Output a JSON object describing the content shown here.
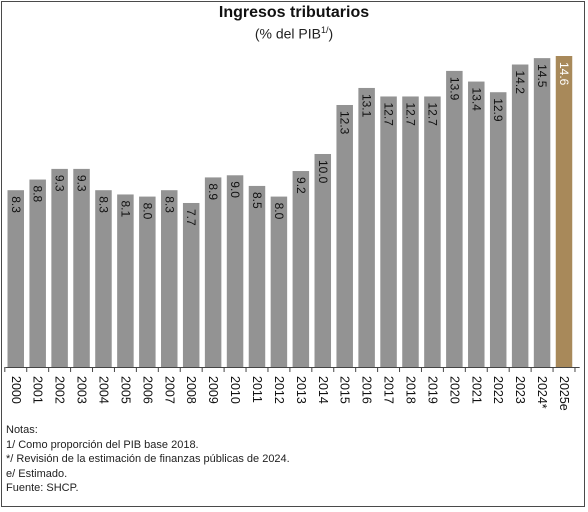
{
  "chart_data": {
    "type": "bar",
    "title": "Ingresos tributarios",
    "subtitle": "(% del PIB",
    "subtitle_sup": "1/",
    "subtitle_close": ")",
    "categories": [
      "2000",
      "2001",
      "2002",
      "2003",
      "2004",
      "2005",
      "2006",
      "2007",
      "2008",
      "2009",
      "2010",
      "2011",
      "2012",
      "2013",
      "2014",
      "2015",
      "2016",
      "2017",
      "2018",
      "2019",
      "2020",
      "2021",
      "2022",
      "2023",
      "2024*",
      "2025e"
    ],
    "values": [
      8.3,
      8.8,
      9.3,
      9.3,
      8.3,
      8.1,
      8.0,
      8.3,
      7.7,
      8.9,
      9.0,
      8.5,
      8.0,
      9.2,
      10.0,
      12.3,
      13.1,
      12.7,
      12.7,
      12.7,
      13.9,
      13.4,
      12.9,
      14.2,
      14.5,
      14.6
    ],
    "labels": [
      "8.3",
      "8.8",
      "9.3",
      "9.3",
      "8.3",
      "8.1",
      "8.0",
      "8.3",
      "7.7",
      "8.9",
      "9.0",
      "8.5",
      "8.0",
      "9.2",
      "10.0",
      "12.3",
      "13.1",
      "12.7",
      "12.7",
      "12.7",
      "13.9",
      "13.4",
      "12.9",
      "14.2",
      "14.5",
      "14.6"
    ],
    "highlight_category": "2025e",
    "colors": {
      "bar": "#939393",
      "highlight": "#a8895a",
      "label": "#111111",
      "highlight_label": "#ffffff",
      "axis": "#444444"
    },
    "ylim": [
      0,
      14.6
    ],
    "grid": false,
    "legend": "none"
  },
  "notes": [
    "Notas:",
    "1/ Como proporción del PIB base 2018.",
    "*/ Revisión de la estimación de finanzas públicas de 2024.",
    "e/ Estimado.",
    "Fuente: SHCP."
  ]
}
